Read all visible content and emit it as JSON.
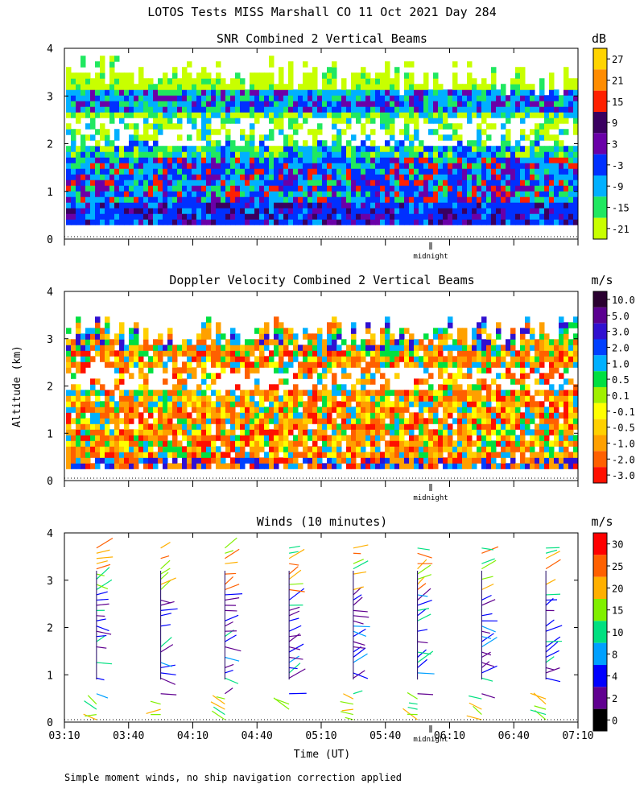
{
  "figure": {
    "title": "LOTOS Tests MISS Marshall CO  11 Oct 2021 Day 284",
    "footnote": "Simple moment winds, no ship navigation correction applied",
    "ylabel": "Altitude (km)",
    "xlabel": "Time (UT)",
    "midnight_label": "midnight"
  },
  "chart_data": [
    {
      "type": "heatmap",
      "title": "SNR Combined 2 Vertical Beams",
      "colorbar_unit": "dB",
      "colorbar_labels": [
        "27",
        "21",
        "15",
        "9",
        "3",
        "-3",
        "-9",
        "-15",
        "-21"
      ],
      "colors": [
        "#ffd400",
        "#ff8c00",
        "#ff2000",
        "#3a0060",
        "#6a00a8",
        "#0030ff",
        "#00b0ff",
        "#20e860",
        "#c8ff00"
      ],
      "ylim": [
        0,
        4
      ],
      "yticks": [
        "0",
        "1",
        "2",
        "3",
        "4"
      ],
      "description_levels": {
        "low_signal_top_km": 3.9,
        "strong_layer_km": [
          0.3,
          1.2
        ]
      }
    },
    {
      "type": "heatmap",
      "title": "Doppler Velocity Combined 2 Vertical Beams",
      "colorbar_unit": "m/s",
      "colorbar_labels": [
        "10.0",
        "5.0",
        "3.0",
        "2.0",
        "1.0",
        "0.5",
        "0.1",
        "-0.1",
        "-0.5",
        "-1.0",
        "-2.0",
        "-3.0"
      ],
      "colors": [
        "#2a0030",
        "#5a0090",
        "#3010d0",
        "#0040ff",
        "#00b0ff",
        "#00e040",
        "#a0f000",
        "#ffff00",
        "#ffd000",
        "#ffa000",
        "#ff6000",
        "#ff1000"
      ],
      "ylim": [
        0,
        4
      ],
      "yticks": [
        "0",
        "1",
        "2",
        "3",
        "4"
      ]
    },
    {
      "type": "scatter",
      "title": "Winds (10 minutes)",
      "colorbar_unit": "m/s",
      "colorbar_labels": [
        "30",
        "25",
        "20",
        "15",
        "10",
        "8",
        "4",
        "2",
        "0"
      ],
      "colors": [
        "#ff0000",
        "#ff6000",
        "#ffb000",
        "#80f000",
        "#00e080",
        "#00a0ff",
        "#0000ff",
        "#600090",
        "#000000"
      ],
      "ylim": [
        0,
        4
      ],
      "yticks": [
        "0",
        "1",
        "2",
        "3",
        "4"
      ],
      "xticks": [
        "03:10",
        "03:40",
        "04:10",
        "04:40",
        "05:10",
        "05:40",
        "06:10",
        "06:40",
        "07:10"
      ],
      "profile_times": [
        "03:25",
        "03:55",
        "04:25",
        "04:55",
        "05:25",
        "05:55",
        "06:25",
        "06:55"
      ]
    }
  ]
}
